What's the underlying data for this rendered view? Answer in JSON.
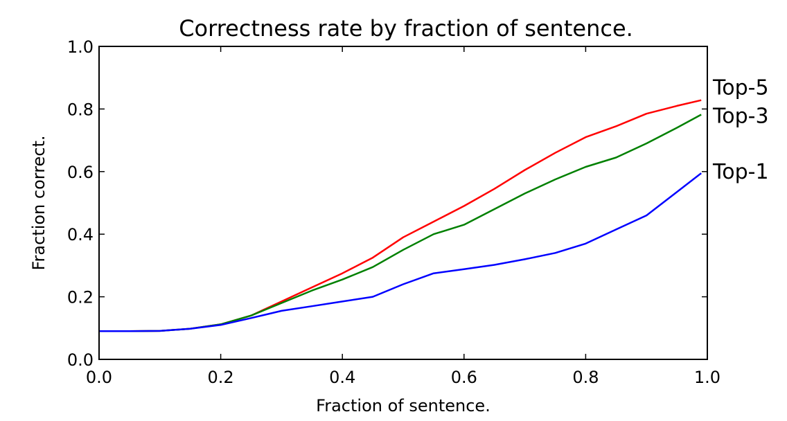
{
  "chart_data": {
    "type": "line",
    "title": "Correctness rate by fraction of sentence.",
    "xlabel": "Fraction of sentence.",
    "ylabel": "Fraction correct.",
    "xlim": [
      0.0,
      1.0
    ],
    "ylim": [
      0.0,
      1.0
    ],
    "xticks": [
      "0.0",
      "0.2",
      "0.4",
      "0.6",
      "0.8",
      "1.0"
    ],
    "yticks": [
      "0.0",
      "0.2",
      "0.4",
      "0.6",
      "0.8",
      "1.0"
    ],
    "grid": false,
    "legend": "inline-right",
    "x": [
      0.0,
      0.05,
      0.1,
      0.15,
      0.2,
      0.25,
      0.3,
      0.35,
      0.4,
      0.45,
      0.5,
      0.55,
      0.6,
      0.65,
      0.7,
      0.75,
      0.8,
      0.85,
      0.9,
      0.95,
      0.99
    ],
    "series": [
      {
        "name": "Top-5",
        "color": "#ff0000",
        "values": [
          0.09,
          0.09,
          0.091,
          0.098,
          0.112,
          0.14,
          0.185,
          0.23,
          0.275,
          0.325,
          0.39,
          0.44,
          0.49,
          0.545,
          0.605,
          0.66,
          0.71,
          0.745,
          0.785,
          0.81,
          0.828
        ]
      },
      {
        "name": "Top-3",
        "color": "#008000",
        "values": [
          0.09,
          0.09,
          0.091,
          0.098,
          0.112,
          0.14,
          0.18,
          0.22,
          0.255,
          0.295,
          0.35,
          0.4,
          0.43,
          0.48,
          0.53,
          0.575,
          0.615,
          0.645,
          0.69,
          0.74,
          0.782
        ]
      },
      {
        "name": "Top-1",
        "color": "#0000ff",
        "values": [
          0.09,
          0.09,
          0.091,
          0.098,
          0.11,
          0.132,
          0.155,
          0.17,
          0.185,
          0.2,
          0.24,
          0.275,
          0.288,
          0.302,
          0.32,
          0.34,
          0.37,
          0.415,
          0.46,
          0.535,
          0.595
        ]
      }
    ]
  }
}
